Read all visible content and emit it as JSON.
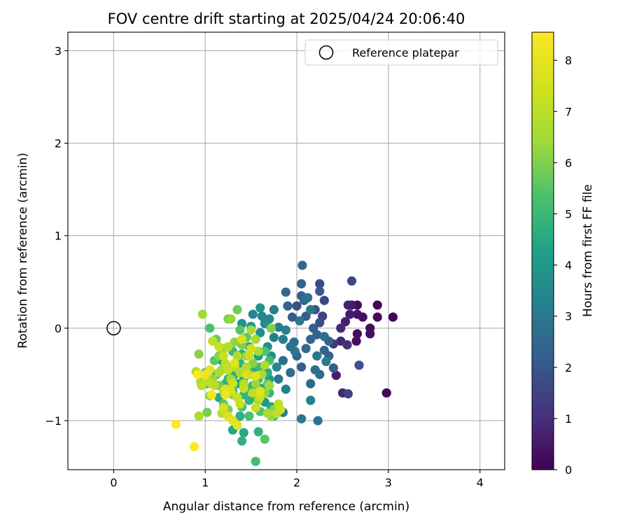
{
  "chart_data": {
    "type": "scatter",
    "title": "FOV centre drift starting at 2025/04/24 20:06:40",
    "xlabel": "Angular distance from reference (arcmin)",
    "ylabel": "Rotation from reference (arcmin)",
    "xlim": [
      -0.5,
      4.27
    ],
    "ylim": [
      -1.53,
      3.2
    ],
    "x_ticks": [
      "0",
      "1",
      "2",
      "3",
      "4"
    ],
    "y_ticks": [
      "−1",
      "0",
      "1",
      "2",
      "3"
    ],
    "x_tick_values": [
      0,
      1,
      2,
      3,
      4
    ],
    "y_tick_values": [
      -1,
      0,
      1,
      2,
      3
    ],
    "grid": true,
    "legend": {
      "placement": "top-right",
      "entries": [
        "Reference platepar"
      ]
    },
    "reference_point": {
      "name": "Reference platepar",
      "x": 0,
      "y": 0
    },
    "colorbar": {
      "label": "Hours from first FF file",
      "colormap": "viridis",
      "range": [
        0,
        8.55
      ],
      "ticks": [
        "0",
        "1",
        "2",
        "3",
        "4",
        "5",
        "6",
        "7",
        "8"
      ],
      "tick_values": [
        0,
        1,
        2,
        3,
        4,
        5,
        6,
        7,
        8
      ]
    },
    "points": [
      [
        2.98,
        -0.7,
        0.1
      ],
      [
        3.05,
        0.12,
        0.1
      ],
      [
        2.88,
        0.25,
        0.1
      ],
      [
        2.88,
        0.12,
        0.2
      ],
      [
        2.8,
        0.0,
        0.2
      ],
      [
        2.8,
        -0.06,
        0.3
      ],
      [
        2.72,
        0.12,
        0.3
      ],
      [
        2.66,
        0.25,
        0.2
      ],
      [
        2.66,
        0.15,
        0.4
      ],
      [
        2.66,
        -0.06,
        0.3
      ],
      [
        2.65,
        -0.14,
        0.3
      ],
      [
        2.6,
        0.25,
        0.5
      ],
      [
        2.58,
        0.15,
        0.6
      ],
      [
        2.56,
        0.25,
        0.7
      ],
      [
        2.53,
        0.07,
        0.7
      ],
      [
        2.5,
        -0.7,
        0.8
      ],
      [
        2.48,
        0.0,
        0.9
      ],
      [
        2.48,
        -0.14,
        0.8
      ],
      [
        2.55,
        -0.18,
        1.0
      ],
      [
        2.43,
        -0.51,
        0.6
      ],
      [
        2.6,
        0.51,
        1.6
      ],
      [
        2.56,
        -0.71,
        1.5
      ],
      [
        2.68,
        -0.4,
        1.9
      ],
      [
        2.4,
        -0.17,
        1.2
      ],
      [
        2.3,
        0.3,
        1.6
      ],
      [
        2.28,
        0.13,
        1.4
      ],
      [
        2.25,
        0.48,
        1.7
      ],
      [
        2.25,
        0.4,
        2.0
      ],
      [
        2.25,
        0.06,
        1.8
      ],
      [
        2.2,
        0.2,
        1.9
      ],
      [
        2.22,
        -0.07,
        2.3
      ],
      [
        2.18,
        0.0,
        2.2
      ],
      [
        2.15,
        -0.12,
        2.4
      ],
      [
        2.1,
        -0.22,
        2.6
      ],
      [
        2.06,
        0.68,
        2.5
      ],
      [
        2.05,
        0.48,
        2.4
      ],
      [
        2.05,
        0.35,
        2.2
      ],
      [
        2.08,
        0.3,
        2.6
      ],
      [
        2.12,
        0.33,
        2.8
      ],
      [
        2.1,
        0.13,
        2.1
      ],
      [
        2.03,
        0.08,
        2.9
      ],
      [
        2.0,
        0.24,
        1.8
      ],
      [
        1.95,
        0.12,
        2.1
      ],
      [
        1.9,
        0.24,
        2.3
      ],
      [
        1.88,
        0.39,
        2.5
      ],
      [
        2.15,
        0.2,
        3.0
      ],
      [
        2.3,
        -0.09,
        2.7
      ],
      [
        2.3,
        -0.24,
        2.5
      ],
      [
        2.35,
        -0.14,
        2.4
      ],
      [
        2.35,
        -0.3,
        2.3
      ],
      [
        2.4,
        -0.43,
        2.2
      ],
      [
        2.32,
        -0.36,
        3.2
      ],
      [
        2.22,
        -0.3,
        2.9
      ],
      [
        2.2,
        -0.45,
        2.7
      ],
      [
        2.15,
        -0.6,
        2.5
      ],
      [
        2.15,
        -0.78,
        3.3
      ],
      [
        2.25,
        -0.5,
        2.6
      ],
      [
        2.05,
        -0.98,
        3.0
      ],
      [
        2.23,
        -1.0,
        2.8
      ],
      [
        2.05,
        -0.42,
        2.2
      ],
      [
        2.0,
        -0.3,
        2.5
      ],
      [
        1.98,
        -0.25,
        2.9
      ],
      [
        1.97,
        -0.15,
        2.7
      ],
      [
        1.93,
        -0.48,
        2.6
      ],
      [
        1.93,
        -0.2,
        2.8
      ],
      [
        1.88,
        -0.02,
        3.3
      ],
      [
        1.85,
        -0.35,
        2.7
      ],
      [
        1.85,
        -0.12,
        3.2
      ],
      [
        1.8,
        0.01,
        3.1
      ],
      [
        1.8,
        -0.55,
        3.0
      ],
      [
        1.88,
        -0.66,
        3.2
      ],
      [
        1.85,
        -0.91,
        3.1
      ],
      [
        1.78,
        -0.42,
        3.4
      ],
      [
        1.75,
        -0.1,
        3.2
      ],
      [
        1.75,
        0.2,
        3.3
      ],
      [
        1.72,
        -0.3,
        3.7
      ],
      [
        1.7,
        0.1,
        3.5
      ],
      [
        1.7,
        -0.55,
        3.9
      ],
      [
        1.68,
        -0.2,
        3.8
      ],
      [
        1.65,
        0.05,
        3.6
      ],
      [
        1.62,
        0.13,
        3.5
      ],
      [
        1.6,
        0.22,
        3.9
      ],
      [
        1.6,
        -0.05,
        3.7
      ],
      [
        1.58,
        -0.3,
        4.1
      ],
      [
        1.55,
        -0.42,
        4.3
      ],
      [
        1.52,
        0.15,
        3.4
      ],
      [
        1.5,
        0.02,
        4.0
      ],
      [
        1.48,
        -0.2,
        4.2
      ],
      [
        1.45,
        -0.45,
        4.4
      ],
      [
        1.42,
        -0.54,
        4.5
      ],
      [
        1.4,
        0.05,
        3.8
      ],
      [
        1.4,
        -0.28,
        4.6
      ],
      [
        1.38,
        -0.38,
        4.8
      ],
      [
        1.35,
        -0.6,
        4.5
      ],
      [
        1.32,
        -0.5,
        4.6
      ],
      [
        1.3,
        -0.68,
        4.7
      ],
      [
        1.3,
        -0.25,
        5.0
      ],
      [
        1.28,
        -0.43,
        4.9
      ],
      [
        1.25,
        -0.55,
        4.7
      ],
      [
        1.22,
        -0.6,
        4.8
      ],
      [
        1.18,
        -0.35,
        4.2
      ],
      [
        1.15,
        -0.75,
        4.6
      ],
      [
        1.12,
        -0.5,
        4.5
      ],
      [
        1.5,
        -0.45,
        4.7
      ],
      [
        1.52,
        -0.62,
        4.6
      ],
      [
        1.55,
        -0.75,
        4.4
      ],
      [
        1.58,
        -0.55,
        4.9
      ],
      [
        1.6,
        -0.42,
        5.1
      ],
      [
        1.62,
        -0.65,
        4.3
      ],
      [
        1.65,
        -0.8,
        4.0
      ],
      [
        1.68,
        -0.48,
        4.6
      ],
      [
        1.7,
        -0.7,
        5.0
      ],
      [
        1.72,
        -0.85,
        4.5
      ],
      [
        1.75,
        -0.95,
        4.8
      ],
      [
        1.48,
        -0.78,
        4.8
      ],
      [
        1.45,
        -0.65,
        5.1
      ],
      [
        1.42,
        -0.72,
        4.9
      ],
      [
        1.4,
        -0.85,
        5.2
      ],
      [
        1.38,
        -0.95,
        4.7
      ],
      [
        1.35,
        -1.05,
        4.8
      ],
      [
        1.3,
        -1.1,
        4.4
      ],
      [
        1.42,
        -1.13,
        4.5
      ],
      [
        1.4,
        -1.22,
        4.8
      ],
      [
        1.58,
        -1.12,
        4.8
      ],
      [
        1.48,
        -0.95,
        5.3
      ],
      [
        1.55,
        -1.44,
        5.2
      ],
      [
        1.65,
        -1.2,
        5.5
      ],
      [
        1.6,
        -0.9,
        5.4
      ],
      [
        1.68,
        -0.6,
        5.6
      ],
      [
        1.7,
        -0.35,
        5.2
      ],
      [
        1.65,
        -0.25,
        5.4
      ],
      [
        1.45,
        -0.1,
        5.6
      ],
      [
        1.35,
        0.2,
        5.8
      ],
      [
        1.25,
        0.1,
        5.9
      ],
      [
        1.38,
        -0.02,
        5.5
      ],
      [
        1.12,
        -0.12,
        5.7
      ],
      [
        1.05,
        0.0,
        5.3
      ],
      [
        1.0,
        -0.48,
        5.4
      ],
      [
        1.02,
        -0.6,
        5.2
      ],
      [
        1.1,
        -0.35,
        5.5
      ],
      [
        1.15,
        -0.62,
        5.8
      ],
      [
        1.2,
        -0.82,
        5.6
      ],
      [
        1.25,
        -0.88,
        6.0
      ],
      [
        1.3,
        -0.72,
        6.1
      ],
      [
        1.32,
        -0.15,
        6.2
      ],
      [
        1.2,
        -0.22,
        6.3
      ],
      [
        1.18,
        -0.45,
        6.4
      ],
      [
        1.15,
        -0.3,
        6.1
      ],
      [
        1.08,
        -0.55,
        6.3
      ],
      [
        1.05,
        -0.73,
        6.2
      ],
      [
        1.02,
        -0.91,
        5.9
      ],
      [
        0.95,
        -0.58,
        6.5
      ],
      [
        0.93,
        -0.28,
        6.1
      ],
      [
        0.97,
        0.15,
        6.4
      ],
      [
        1.28,
        0.1,
        6.3
      ],
      [
        1.4,
        -0.18,
        6.0
      ],
      [
        1.45,
        -0.3,
        6.2
      ],
      [
        1.48,
        -0.5,
        6.5
      ],
      [
        1.52,
        -0.38,
        6.1
      ],
      [
        1.55,
        -0.6,
        6.3
      ],
      [
        1.58,
        -0.78,
        6.5
      ],
      [
        1.62,
        -0.5,
        6.6
      ],
      [
        1.65,
        -0.7,
        6.2
      ],
      [
        1.7,
        -0.62,
        6.4
      ],
      [
        1.75,
        -0.88,
        6.1
      ],
      [
        1.72,
        -0.95,
        6.3
      ],
      [
        1.68,
        -0.92,
        6.6
      ],
      [
        1.72,
        0.0,
        6.0
      ],
      [
        1.65,
        -0.4,
        6.7
      ],
      [
        1.58,
        -0.25,
        6.6
      ],
      [
        1.55,
        -0.12,
        6.5
      ],
      [
        1.5,
        -0.02,
        6.7
      ],
      [
        1.45,
        -0.42,
        6.8
      ],
      [
        1.42,
        -0.6,
        6.9
      ],
      [
        1.38,
        -0.48,
        6.7
      ],
      [
        1.35,
        -0.3,
        6.8
      ],
      [
        1.32,
        -0.42,
        6.9
      ],
      [
        1.28,
        -0.55,
        6.6
      ],
      [
        1.25,
        -0.2,
        6.8
      ],
      [
        1.22,
        -0.38,
        7.0
      ],
      [
        1.2,
        -0.68,
        6.9
      ],
      [
        1.18,
        -0.92,
        7.1
      ],
      [
        1.15,
        -0.48,
        6.7
      ],
      [
        1.1,
        -0.62,
        6.9
      ],
      [
        1.07,
        -0.6,
        7.0
      ],
      [
        1.02,
        -0.57,
        7.2
      ],
      [
        0.96,
        -0.62,
        7.0
      ],
      [
        0.9,
        -0.47,
        6.8
      ],
      [
        0.93,
        -0.95,
        6.7
      ],
      [
        1.08,
        -0.14,
        7.1
      ],
      [
        1.15,
        -0.2,
        7.3
      ],
      [
        1.2,
        -0.3,
        7.4
      ],
      [
        1.25,
        -0.45,
        7.2
      ],
      [
        1.3,
        -0.6,
        7.5
      ],
      [
        1.35,
        -0.75,
        7.3
      ],
      [
        1.38,
        -0.82,
        7.4
      ],
      [
        1.42,
        -0.65,
        7.2
      ],
      [
        1.45,
        -0.5,
        7.6
      ],
      [
        1.48,
        -0.3,
        7.4
      ],
      [
        1.5,
        -0.22,
        7.5
      ],
      [
        1.52,
        -0.7,
        7.1
      ],
      [
        1.55,
        -0.86,
        7.3
      ],
      [
        1.6,
        -0.74,
        7.5
      ],
      [
        1.8,
        -0.82,
        7.1
      ],
      [
        1.82,
        -0.88,
        7.4
      ],
      [
        1.78,
        -0.92,
        7.2
      ],
      [
        1.4,
        -0.12,
        7.7
      ],
      [
        1.32,
        -0.38,
        7.8
      ],
      [
        1.28,
        -0.68,
        7.6
      ],
      [
        1.22,
        -0.66,
        7.9
      ],
      [
        1.2,
        -0.86,
        7.6
      ],
      [
        1.25,
        -0.95,
        7.8
      ],
      [
        1.3,
        -1.0,
        7.9
      ],
      [
        1.35,
        -1.05,
        8.0
      ],
      [
        1.22,
        -0.72,
        8.1
      ],
      [
        1.05,
        -0.45,
        8.0
      ],
      [
        1.0,
        -0.5,
        8.2
      ],
      [
        0.92,
        -0.5,
        8.4
      ],
      [
        1.07,
        -0.72,
        8.3
      ],
      [
        1.55,
        -0.52,
        7.9
      ],
      [
        1.6,
        -0.68,
        7.8
      ],
      [
        0.68,
        -1.04,
        8.5
      ],
      [
        0.88,
        -1.28,
        8.6
      ]
    ]
  }
}
